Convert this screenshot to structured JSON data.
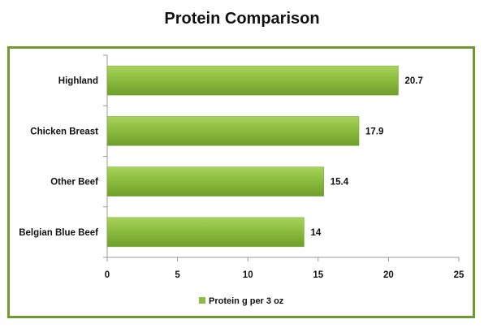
{
  "chart_data": {
    "type": "bar",
    "orientation": "horizontal",
    "title": "Protein Comparison",
    "categories": [
      "Highland",
      "Chicken Breast",
      "Other Beef",
      "Belgian Blue Beef"
    ],
    "series": [
      {
        "name": "Protein  g per 3 oz",
        "values": [
          20.7,
          17.9,
          15.4,
          14
        ],
        "data_labels": [
          "20.7",
          "17.9",
          "15.4",
          "14"
        ],
        "color": "#8cbd3f"
      }
    ],
    "xlim": [
      0,
      25
    ],
    "xticks": [
      0,
      5,
      10,
      15,
      20,
      25
    ],
    "xtick_labels": [
      "0",
      "5",
      "10",
      "15",
      "20",
      "25"
    ],
    "grid": false,
    "legend_position": "bottom",
    "frame_color": "#6f9a2f"
  }
}
